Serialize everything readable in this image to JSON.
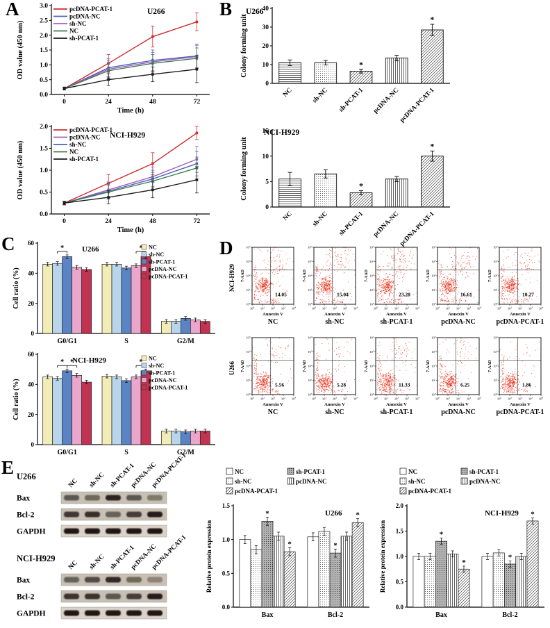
{
  "panels": {
    "A": {
      "letter": "A"
    },
    "B": {
      "letter": "B"
    },
    "C": {
      "letter": "C"
    },
    "D": {
      "letter": "D"
    },
    "E": {
      "letter": "E"
    }
  },
  "chart_data": [
    {
      "id": "cck8-u266",
      "type": "line",
      "title": "U266",
      "xlabel": "Time (h)",
      "ylabel": "OD value (450 nm)",
      "x": [
        0,
        24,
        48,
        72
      ],
      "ylim": [
        0,
        3.0
      ],
      "yticks": [
        0,
        0.5,
        1.0,
        1.5,
        2.0,
        2.5,
        3.0
      ],
      "legend_position": "top-left",
      "series": [
        {
          "name": "pcDNA-PCAT-1",
          "color": "#cf2b2b",
          "values": [
            0.2,
            1.05,
            1.95,
            2.45
          ],
          "err": [
            0.05,
            0.3,
            0.35,
            0.3
          ]
        },
        {
          "name": "pcDNA-NC",
          "color": "#4a5fc1",
          "values": [
            0.2,
            0.9,
            1.15,
            1.3
          ],
          "err": [
            0.05,
            0.3,
            0.35,
            0.4
          ]
        },
        {
          "name": "sh-NC",
          "color": "#a45db4",
          "values": [
            0.2,
            0.85,
            1.1,
            1.28
          ],
          "err": [
            0.05,
            0.28,
            0.32,
            0.38
          ]
        },
        {
          "name": "NC",
          "color": "#3f7a52",
          "values": [
            0.2,
            0.8,
            1.05,
            1.22
          ],
          "err": [
            0.05,
            0.25,
            0.3,
            0.35
          ]
        },
        {
          "name": "sh-PCAT-1",
          "color": "#1a1a1a",
          "values": [
            0.2,
            0.5,
            0.68,
            0.85
          ],
          "err": [
            0.05,
            0.2,
            0.25,
            0.45
          ]
        }
      ]
    },
    {
      "id": "cck8-nci-h929",
      "type": "line",
      "title": "NCI-H929",
      "xlabel": "Time (h)",
      "ylabel": "OD value (450 nm)",
      "x": [
        0,
        24,
        48,
        72
      ],
      "ylim": [
        0,
        2.0
      ],
      "yticks": [
        0,
        0.5,
        1.0,
        1.5,
        2.0
      ],
      "legend_position": "top-left",
      "series": [
        {
          "name": "pcDNA-PCAT-1",
          "color": "#cf2b2b",
          "values": [
            0.25,
            0.7,
            1.15,
            1.85
          ],
          "err": [
            0.04,
            0.2,
            0.25,
            0.15
          ]
        },
        {
          "name": "pcDNA-NC",
          "color": "#a45db4",
          "values": [
            0.25,
            0.55,
            0.85,
            1.25
          ],
          "err": [
            0.04,
            0.18,
            0.22,
            0.3
          ]
        },
        {
          "name": "sh-NC",
          "color": "#4a5fc1",
          "values": [
            0.25,
            0.52,
            0.8,
            1.15
          ],
          "err": [
            0.04,
            0.18,
            0.2,
            0.28
          ]
        },
        {
          "name": "NC",
          "color": "#3f7a52",
          "values": [
            0.25,
            0.5,
            0.75,
            1.05
          ],
          "err": [
            0.04,
            0.16,
            0.2,
            0.25
          ]
        },
        {
          "name": "sh-PCAT-1",
          "color": "#1a1a1a",
          "values": [
            0.25,
            0.38,
            0.55,
            0.78
          ],
          "err": [
            0.04,
            0.15,
            0.18,
            0.3
          ]
        }
      ]
    },
    {
      "id": "colony-u266",
      "type": "bar",
      "title": "U266",
      "ylabel": "Colony forming unit",
      "categories": [
        "NC",
        "sh-NC",
        "sh-PCAT-1",
        "pcDNA-NC",
        "pcDNA-PCAT-1"
      ],
      "values": [
        11,
        11,
        6.5,
        13.5,
        28.5
      ],
      "errors": [
        1.5,
        1.2,
        1.0,
        1.5,
        3.0
      ],
      "sig": [
        2,
        4
      ],
      "sig_symbol": "*",
      "ylim": [
        0,
        40
      ],
      "yticks": [
        0,
        10,
        20,
        30,
        40
      ],
      "patterns": [
        "hlines",
        "dots",
        "diag",
        "vlines",
        "diag"
      ]
    },
    {
      "id": "colony-nci-h929",
      "type": "bar",
      "title": "NCI-H929",
      "ylabel": "Colony forming unit",
      "categories": [
        "NC",
        "sh-NC",
        "sh-PCAT-1",
        "pcDNA-NC",
        "pcDNA-PCAT-1"
      ],
      "values": [
        5.5,
        6.5,
        2.8,
        5.5,
        10
      ],
      "errors": [
        1.3,
        0.8,
        0.4,
        0.5,
        1.0
      ],
      "sig": [
        2,
        4
      ],
      "sig_symbol": "*",
      "ylim": [
        0,
        15
      ],
      "yticks": [
        0,
        5,
        10,
        15
      ],
      "patterns": [
        "hlines",
        "dots",
        "diag",
        "vlines",
        "diag"
      ]
    },
    {
      "id": "cell-cycle-u266",
      "type": "grouped-bar",
      "title": "U266",
      "ylabel": "Cell ratio (%)",
      "categories": [
        "G0/G1",
        "S",
        "G2/M"
      ],
      "series": [
        {
          "name": "NC",
          "color": "#f2ecb6",
          "values": [
            46,
            46,
            8
          ]
        },
        {
          "name": "sh-NC",
          "color": "#b9d5eb",
          "values": [
            46.5,
            46,
            8
          ]
        },
        {
          "name": "sh-PCAT-1",
          "color": "#5b84c4",
          "values": [
            51,
            43.5,
            10
          ]
        },
        {
          "name": "pcDNA-NC",
          "color": "#eaa6cb",
          "values": [
            44,
            45,
            9
          ]
        },
        {
          "name": "pcDNA-PCAT-1",
          "color": "#c23352",
          "values": [
            42.5,
            51,
            8
          ]
        }
      ],
      "errors": 1.2,
      "ylim": [
        0,
        60
      ],
      "yticks": [
        0,
        20,
        40,
        60
      ],
      "sig_symbol": "*",
      "brackets": [
        {
          "group": 0,
          "from": 1,
          "to": 2
        },
        {
          "group": 1,
          "from": 3,
          "to": 4
        }
      ],
      "legend_position": "top-right"
    },
    {
      "id": "cell-cycle-nci-h929",
      "type": "grouped-bar",
      "title": "NCI-H929",
      "ylabel": "Cell ratio (%)",
      "categories": [
        "G0/G1",
        "S",
        "G2/M"
      ],
      "series": [
        {
          "name": "NC",
          "color": "#f2ecb6",
          "values": [
            45,
            45.5,
            9
          ]
        },
        {
          "name": "sh-NC",
          "color": "#b9d5eb",
          "values": [
            44,
            45,
            9
          ]
        },
        {
          "name": "sh-PCAT-1",
          "color": "#5b84c4",
          "values": [
            49,
            42.5,
            8.5
          ]
        },
        {
          "name": "pcDNA-NC",
          "color": "#eaa6cb",
          "values": [
            46,
            45,
            9
          ]
        },
        {
          "name": "pcDNA-PCAT-1",
          "color": "#c23352",
          "values": [
            41.5,
            49,
            9
          ]
        }
      ],
      "errors": 1.2,
      "ylim": [
        0,
        60
      ],
      "yticks": [
        0,
        20,
        40,
        60
      ],
      "sig_symbol": "*",
      "brackets": [
        {
          "group": 0,
          "from": 1,
          "to": 2
        },
        {
          "group": 0,
          "from": 2,
          "to": 3
        },
        {
          "group": 1,
          "from": 3,
          "to": 4
        }
      ],
      "legend_position": "top-right"
    },
    {
      "id": "apoptosis-flow",
      "type": "flow-cytometry",
      "xlabel": "Annexin V",
      "ylabel": "7-AAD",
      "tick_exponents": [
        0,
        1,
        2,
        3,
        4
      ],
      "dot_color": "#e8250e",
      "rows": [
        {
          "cell_line": "NCI-H929",
          "panels": [
            {
              "group": "NC",
              "value": 14.05
            },
            {
              "group": "sh-NC",
              "value": 15.04
            },
            {
              "group": "sh-PCAT-1",
              "value": 23.28
            },
            {
              "group": "pcDNA-NC",
              "value": 16.61
            },
            {
              "group": "pcDNA-PCAT-1",
              "value": 10.27
            }
          ]
        },
        {
          "cell_line": "U266",
          "panels": [
            {
              "group": "NC",
              "value": 5.56
            },
            {
              "group": "sh-NC",
              "value": 5.28
            },
            {
              "group": "sh-PCAT-1",
              "value": 11.33
            },
            {
              "group": "pcDNA-NC",
              "value": 6.25
            },
            {
              "group": "pcDNA-PCAT-1",
              "value": 1.86
            }
          ]
        }
      ]
    },
    {
      "id": "protein-u266",
      "type": "grouped-bar",
      "title": "U266",
      "ylabel": "Relative protein expression",
      "categories": [
        "Bax",
        "Bcl-2"
      ],
      "series": [
        {
          "name": "NC",
          "pattern": "solid",
          "values": [
            1.0,
            1.04
          ]
        },
        {
          "name": "sh-NC",
          "pattern": "dots",
          "values": [
            0.85,
            1.12
          ]
        },
        {
          "name": "sh-PCAT-1",
          "pattern": "darkdots",
          "values": [
            1.27,
            0.8
          ]
        },
        {
          "name": "pcDNA-NC",
          "pattern": "vlines",
          "values": [
            1.05,
            1.05
          ]
        },
        {
          "name": "pcDNA-PCAT-1",
          "pattern": "diag",
          "values": [
            0.82,
            1.25
          ]
        }
      ],
      "errors": 0.06,
      "ylim": [
        0,
        1.5
      ],
      "yticks": [
        0,
        0.5,
        1.0,
        1.5
      ],
      "sig_symbol": "*",
      "sig": [
        [
          0,
          2
        ],
        [
          0,
          4
        ],
        [
          1,
          2
        ],
        [
          1,
          4
        ]
      ],
      "legend_cols": [
        [
          0,
          1,
          4
        ],
        [
          2,
          3
        ]
      ]
    },
    {
      "id": "protein-nci-h929",
      "type": "grouped-bar",
      "title": "NCI-H929",
      "ylabel": "Relative protein expression",
      "categories": [
        "Bax",
        "Bcl-2"
      ],
      "series": [
        {
          "name": "NC",
          "pattern": "solid",
          "values": [
            1.0,
            1.0
          ]
        },
        {
          "name": "sh-NC",
          "pattern": "dots",
          "values": [
            1.0,
            1.07
          ]
        },
        {
          "name": "sh-PCAT-1",
          "pattern": "darkdots",
          "values": [
            1.3,
            0.85
          ]
        },
        {
          "name": "pcDNA-NC",
          "pattern": "vlines",
          "values": [
            1.05,
            1.0
          ]
        },
        {
          "name": "pcDNA-PCAT-1",
          "pattern": "diag",
          "values": [
            0.75,
            1.7
          ]
        }
      ],
      "errors": 0.06,
      "ylim": [
        0,
        2.0
      ],
      "yticks": [
        0,
        0.5,
        1.0,
        1.5,
        2.0
      ],
      "sig_symbol": "*",
      "sig": [
        [
          0,
          2
        ],
        [
          0,
          4
        ],
        [
          1,
          2
        ],
        [
          1,
          4
        ]
      ],
      "legend_cols": [
        [
          0,
          1,
          4
        ],
        [
          2,
          3
        ]
      ]
    }
  ],
  "blots": [
    {
      "cell_line": "U266",
      "lanes": [
        "NC",
        "sh-NC",
        "sh-PCAT-1",
        "pcDNA-NC",
        "pcDNA-PCAT-1"
      ],
      "rows": [
        {
          "protein": "Bax",
          "intensities": [
            0.6,
            0.5,
            0.88,
            0.6,
            0.42
          ]
        },
        {
          "protein": "Bcl-2",
          "intensities": [
            0.78,
            0.82,
            0.55,
            0.75,
            0.92
          ]
        },
        {
          "protein": "GAPDH",
          "intensities": [
            0.95,
            0.95,
            0.95,
            0.95,
            0.95
          ]
        }
      ]
    },
    {
      "cell_line": "NCI-H929",
      "lanes": [
        "NC",
        "sh-NC",
        "sh-PCAT-1",
        "pcDNA-NC",
        "pcDNA-PCAT-1"
      ],
      "rows": [
        {
          "protein": "Bax",
          "intensities": [
            0.55,
            0.68,
            0.85,
            0.5,
            0.32
          ]
        },
        {
          "protein": "Bcl-2",
          "intensities": [
            0.8,
            0.8,
            0.6,
            0.75,
            0.92
          ]
        },
        {
          "protein": "GAPDH",
          "intensities": [
            0.95,
            0.95,
            0.95,
            0.95,
            0.95
          ]
        }
      ]
    }
  ]
}
